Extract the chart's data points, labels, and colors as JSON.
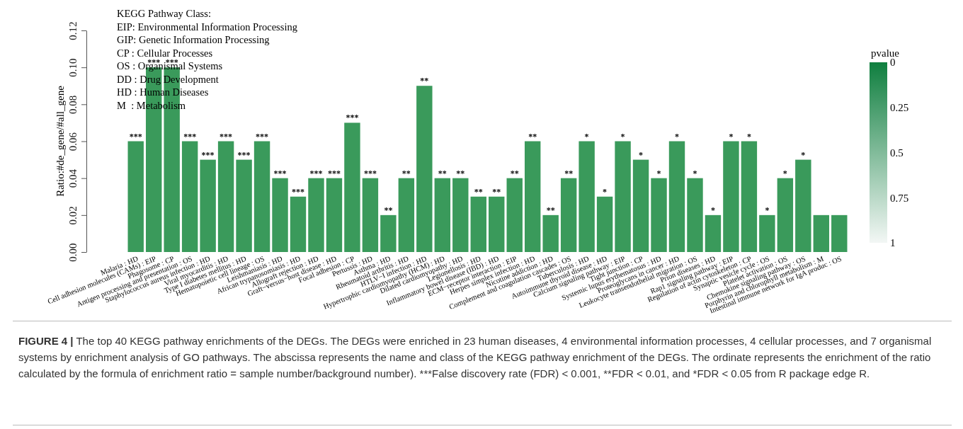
{
  "chart_data": {
    "type": "bar",
    "ylabel": "Ratio:#de_gene/#all_gene",
    "categories": [
      "Malaria : HD",
      "Cell adhesion molecules (CAMs) : EIP",
      "Phagosome : CP",
      "Antigen processing and presentation : OS",
      "Staphylococcus aureus infection : HD",
      "Viral myocarditis : HD",
      "Type I diabetes mellitus : HD",
      "Hematopoietic cell lineage : OS",
      "Leishmaniasis : HD",
      "African trypanosomiasis : HD",
      "Allograft rejection : HD",
      "Graft−versus−host disease : HD",
      "Focal adhesion : CP",
      "Pertussis : HD",
      "Asthma : HD",
      "Rheumatoid arthritis : HD",
      "HTLV−I infection : HD",
      "Hypertrophic cardiomyopathy (HCM) : HD",
      "Dilated cardiomyopathy : HD",
      "Legionellosis : HD",
      "Inflammatory bowel disease (IBD) : HD",
      "ECM−receptor interaction : EIP",
      "Herpes simplex infection : HD",
      "Nicotine addiction : HD",
      "Complement and coagulation cascades : OS",
      "Tuberculosis : HD",
      "Autoimmune thyroid disease : HD",
      "Calcium signaling pathway : EIP",
      "Tight junction : CP",
      "Systemic lupus erythematosus : HD",
      "Proteoglycans in cancer : HD",
      "Leukocyte transendothelial migration : OS",
      "Prion diseases : HD",
      "Rap1 signaling pathway : EIP",
      "Regulation of actin cytoskeleton : CP",
      "Synaptic vesicle cycle : OS",
      "Platelet activation : OS",
      "Chemokine signaling pathway : OS",
      "Porphyrin and chlorophyll metabolism : M",
      "Intestinal immune network for IgA produc : OS"
    ],
    "values": [
      0.06,
      0.1,
      0.1,
      0.06,
      0.05,
      0.06,
      0.05,
      0.06,
      0.04,
      0.03,
      0.04,
      0.04,
      0.07,
      0.04,
      0.02,
      0.04,
      0.09,
      0.04,
      0.04,
      0.03,
      0.03,
      0.04,
      0.06,
      0.02,
      0.04,
      0.06,
      0.03,
      0.06,
      0.05,
      0.04,
      0.06,
      0.04,
      0.02,
      0.06,
      0.06,
      0.02,
      0.04,
      0.05,
      0.02,
      0.02
    ],
    "value_labels": [
      "***",
      "***",
      "***",
      "***",
      "***",
      "***",
      "***",
      "***",
      "***",
      "***",
      "***",
      "***",
      "***",
      "***",
      "**",
      "**",
      "**",
      "**",
      "**",
      "**",
      "**",
      "**",
      "**",
      "**",
      "**",
      "*",
      "*",
      "*",
      "*",
      "*",
      "*",
      "*",
      "*",
      "*",
      "*",
      "*",
      "*",
      "*",
      null,
      null
    ],
    "color": "#3a9a5b",
    "ylim": [
      0,
      0.12
    ],
    "yticks": [
      {
        "value": 0,
        "label": "0.00"
      },
      {
        "value": 0.02,
        "label": "0.02"
      },
      {
        "value": 0.04,
        "label": "0.04"
      },
      {
        "value": 0.06,
        "label": "0.06"
      },
      {
        "value": 0.08,
        "label": "0.08"
      },
      {
        "value": 0.1,
        "label": "0.10"
      },
      {
        "value": 0.12,
        "label": "0.12"
      }
    ],
    "clabel": "pvalue",
    "clim": [
      1,
      0
    ],
    "cticks": [
      {
        "value": 0,
        "label": "0"
      },
      {
        "value": 0.25,
        "label": "0.25"
      },
      {
        "value": 0.5,
        "label": "0.5"
      },
      {
        "value": 0.75,
        "label": "0.75"
      },
      {
        "value": 1,
        "label": "1"
      }
    ],
    "grid": false,
    "annotations": [
      "KEGG Pathway Class:",
      "EIP: Environmental Information Processing",
      "GIP: Genetic Information Processing",
      "CP : Cellular Processes",
      "OS : Organismal Systems",
      "DD : Drug Development",
      "HD : Human Diseases",
      "M  : Metabolism",
      "FIGURE 4 | The top 40 KEGG pathway enrichments of the DEGs. The DEGs were enriched in 23 human diseases, 4 environmental information processes, 4 cellular processes, and 7 organismal systems by enrichment analysis of GO pathways. The abscissa represents the name and class of the KEGG pathway enrichment of the DEGs. The ordinate represents the enrichment of the ratio calculated by the formula of enrichment ratio = sample number/background number). ***False discovery rate (FDR) < 0.001, **FDR < 0.01, and *FDR < 0.05 from R package edge R."
    ]
  }
}
